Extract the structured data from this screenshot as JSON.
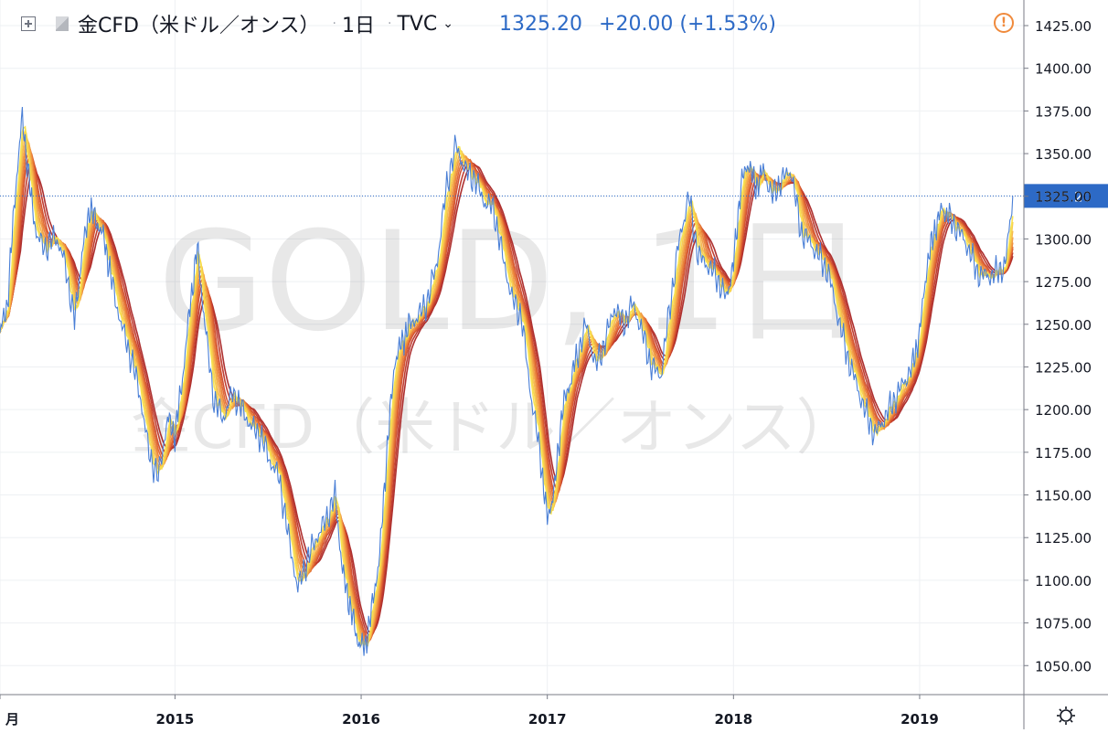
{
  "header": {
    "symbol": "金CFD（米ドル／オンス）",
    "interval": "1日",
    "exchange": "TVC",
    "last_price": "1325.20",
    "change": "+20.00 (+1.53%)",
    "icons": [
      "plus-square-icon",
      "flag-icon",
      "chevron-down-icon",
      "alert-icon",
      "settings-gear-icon"
    ]
  },
  "watermark": {
    "line1": "GOLD, 1日",
    "line2": "金CFD（米ドル／オンス）"
  },
  "colors": {
    "price_line": "#4a7fd6",
    "last_price_tag": "#2d6ac6",
    "ribbon_fast": "#f7e04a",
    "ribbon_slow": "#a92525",
    "alert": "#f08a3c"
  },
  "chart_data": {
    "type": "line",
    "ylim": [
      1033,
      1440
    ],
    "xlim": [
      2014.0,
      2019.5
    ],
    "y_ticks": [
      "1425.00",
      "1400.00",
      "1375.00",
      "1350.00",
      "1325.00",
      "1300.00",
      "1275.00",
      "1250.00",
      "1225.00",
      "1200.00",
      "1175.00",
      "1150.00",
      "1125.00",
      "1100.00",
      "1075.00",
      "1050.00"
    ],
    "x_ticks": [
      {
        "label": "月",
        "value": 2014.0
      },
      {
        "label": "2015",
        "value": 2014.94
      },
      {
        "label": "2016",
        "value": 2015.94
      },
      {
        "label": "2017",
        "value": 2016.94
      },
      {
        "label": "2018",
        "value": 2017.94
      },
      {
        "label": "2019",
        "value": 2018.94
      }
    ],
    "last_price_label": "1325.20",
    "last_price_value": 1325.2,
    "series": [
      {
        "x": [
          2014.0,
          2014.04,
          2014.08,
          2014.12,
          2014.16,
          2014.2,
          2014.25,
          2014.3,
          2014.35,
          2014.4,
          2014.44,
          2014.48,
          2014.52,
          2014.56,
          2014.6,
          2014.65,
          2014.7,
          2014.75,
          2014.8,
          2014.85,
          2014.9,
          2014.94,
          2014.98,
          2015.02,
          2015.06,
          2015.1,
          2015.15,
          2015.2,
          2015.25,
          2015.3,
          2015.35,
          2015.4,
          2015.45,
          2015.5,
          2015.55,
          2015.6,
          2015.65,
          2015.7,
          2015.75,
          2015.8,
          2015.84,
          2015.88,
          2015.92,
          2015.96,
          2016.0,
          2016.04,
          2016.08,
          2016.12,
          2016.16,
          2016.2,
          2016.25,
          2016.3,
          2016.35,
          2016.4,
          2016.45,
          2016.5,
          2016.55,
          2016.6,
          2016.65,
          2016.7,
          2016.75,
          2016.8,
          2016.85,
          2016.9,
          2016.94,
          2016.98,
          2017.02,
          2017.06,
          2017.1,
          2017.15,
          2017.2,
          2017.25,
          2017.3,
          2017.35,
          2017.4,
          2017.45,
          2017.5,
          2017.55,
          2017.6,
          2017.65,
          2017.7,
          2017.75,
          2017.8,
          2017.85,
          2017.9,
          2017.94,
          2017.98,
          2018.02,
          2018.06,
          2018.1,
          2018.15,
          2018.2,
          2018.25,
          2018.3,
          2018.35,
          2018.4,
          2018.45,
          2018.5,
          2018.55,
          2018.6,
          2018.65,
          2018.7,
          2018.75,
          2018.8,
          2018.85,
          2018.9,
          2018.94,
          2018.98,
          2019.02,
          2019.06,
          2019.1,
          2019.15,
          2019.2,
          2019.25,
          2019.3,
          2019.35,
          2019.4,
          2019.44
        ],
        "values": [
          1245,
          1262,
          1325,
          1372,
          1330,
          1300,
          1295,
          1302,
          1285,
          1252,
          1290,
          1318,
          1310,
          1300,
          1275,
          1250,
          1232,
          1210,
          1175,
          1160,
          1195,
          1185,
          1218,
          1260,
          1295,
          1250,
          1205,
          1195,
          1210,
          1200,
          1190,
          1185,
          1170,
          1160,
          1125,
          1095,
          1112,
          1125,
          1135,
          1150,
          1105,
          1085,
          1065,
          1060,
          1085,
          1115,
          1178,
          1228,
          1240,
          1250,
          1255,
          1265,
          1288,
          1332,
          1355,
          1340,
          1335,
          1322,
          1318,
          1290,
          1265,
          1255,
          1210,
          1175,
          1135,
          1155,
          1200,
          1215,
          1232,
          1250,
          1225,
          1240,
          1260,
          1250,
          1262,
          1245,
          1225,
          1220,
          1262,
          1300,
          1325,
          1290,
          1285,
          1278,
          1265,
          1285,
          1332,
          1345,
          1330,
          1340,
          1325,
          1335,
          1340,
          1305,
          1298,
          1290,
          1280,
          1255,
          1232,
          1215,
          1198,
          1185,
          1195,
          1205,
          1215,
          1225,
          1245,
          1285,
          1305,
          1318,
          1312,
          1305,
          1295,
          1280,
          1278,
          1280,
          1285,
          1325
        ]
      }
    ]
  }
}
